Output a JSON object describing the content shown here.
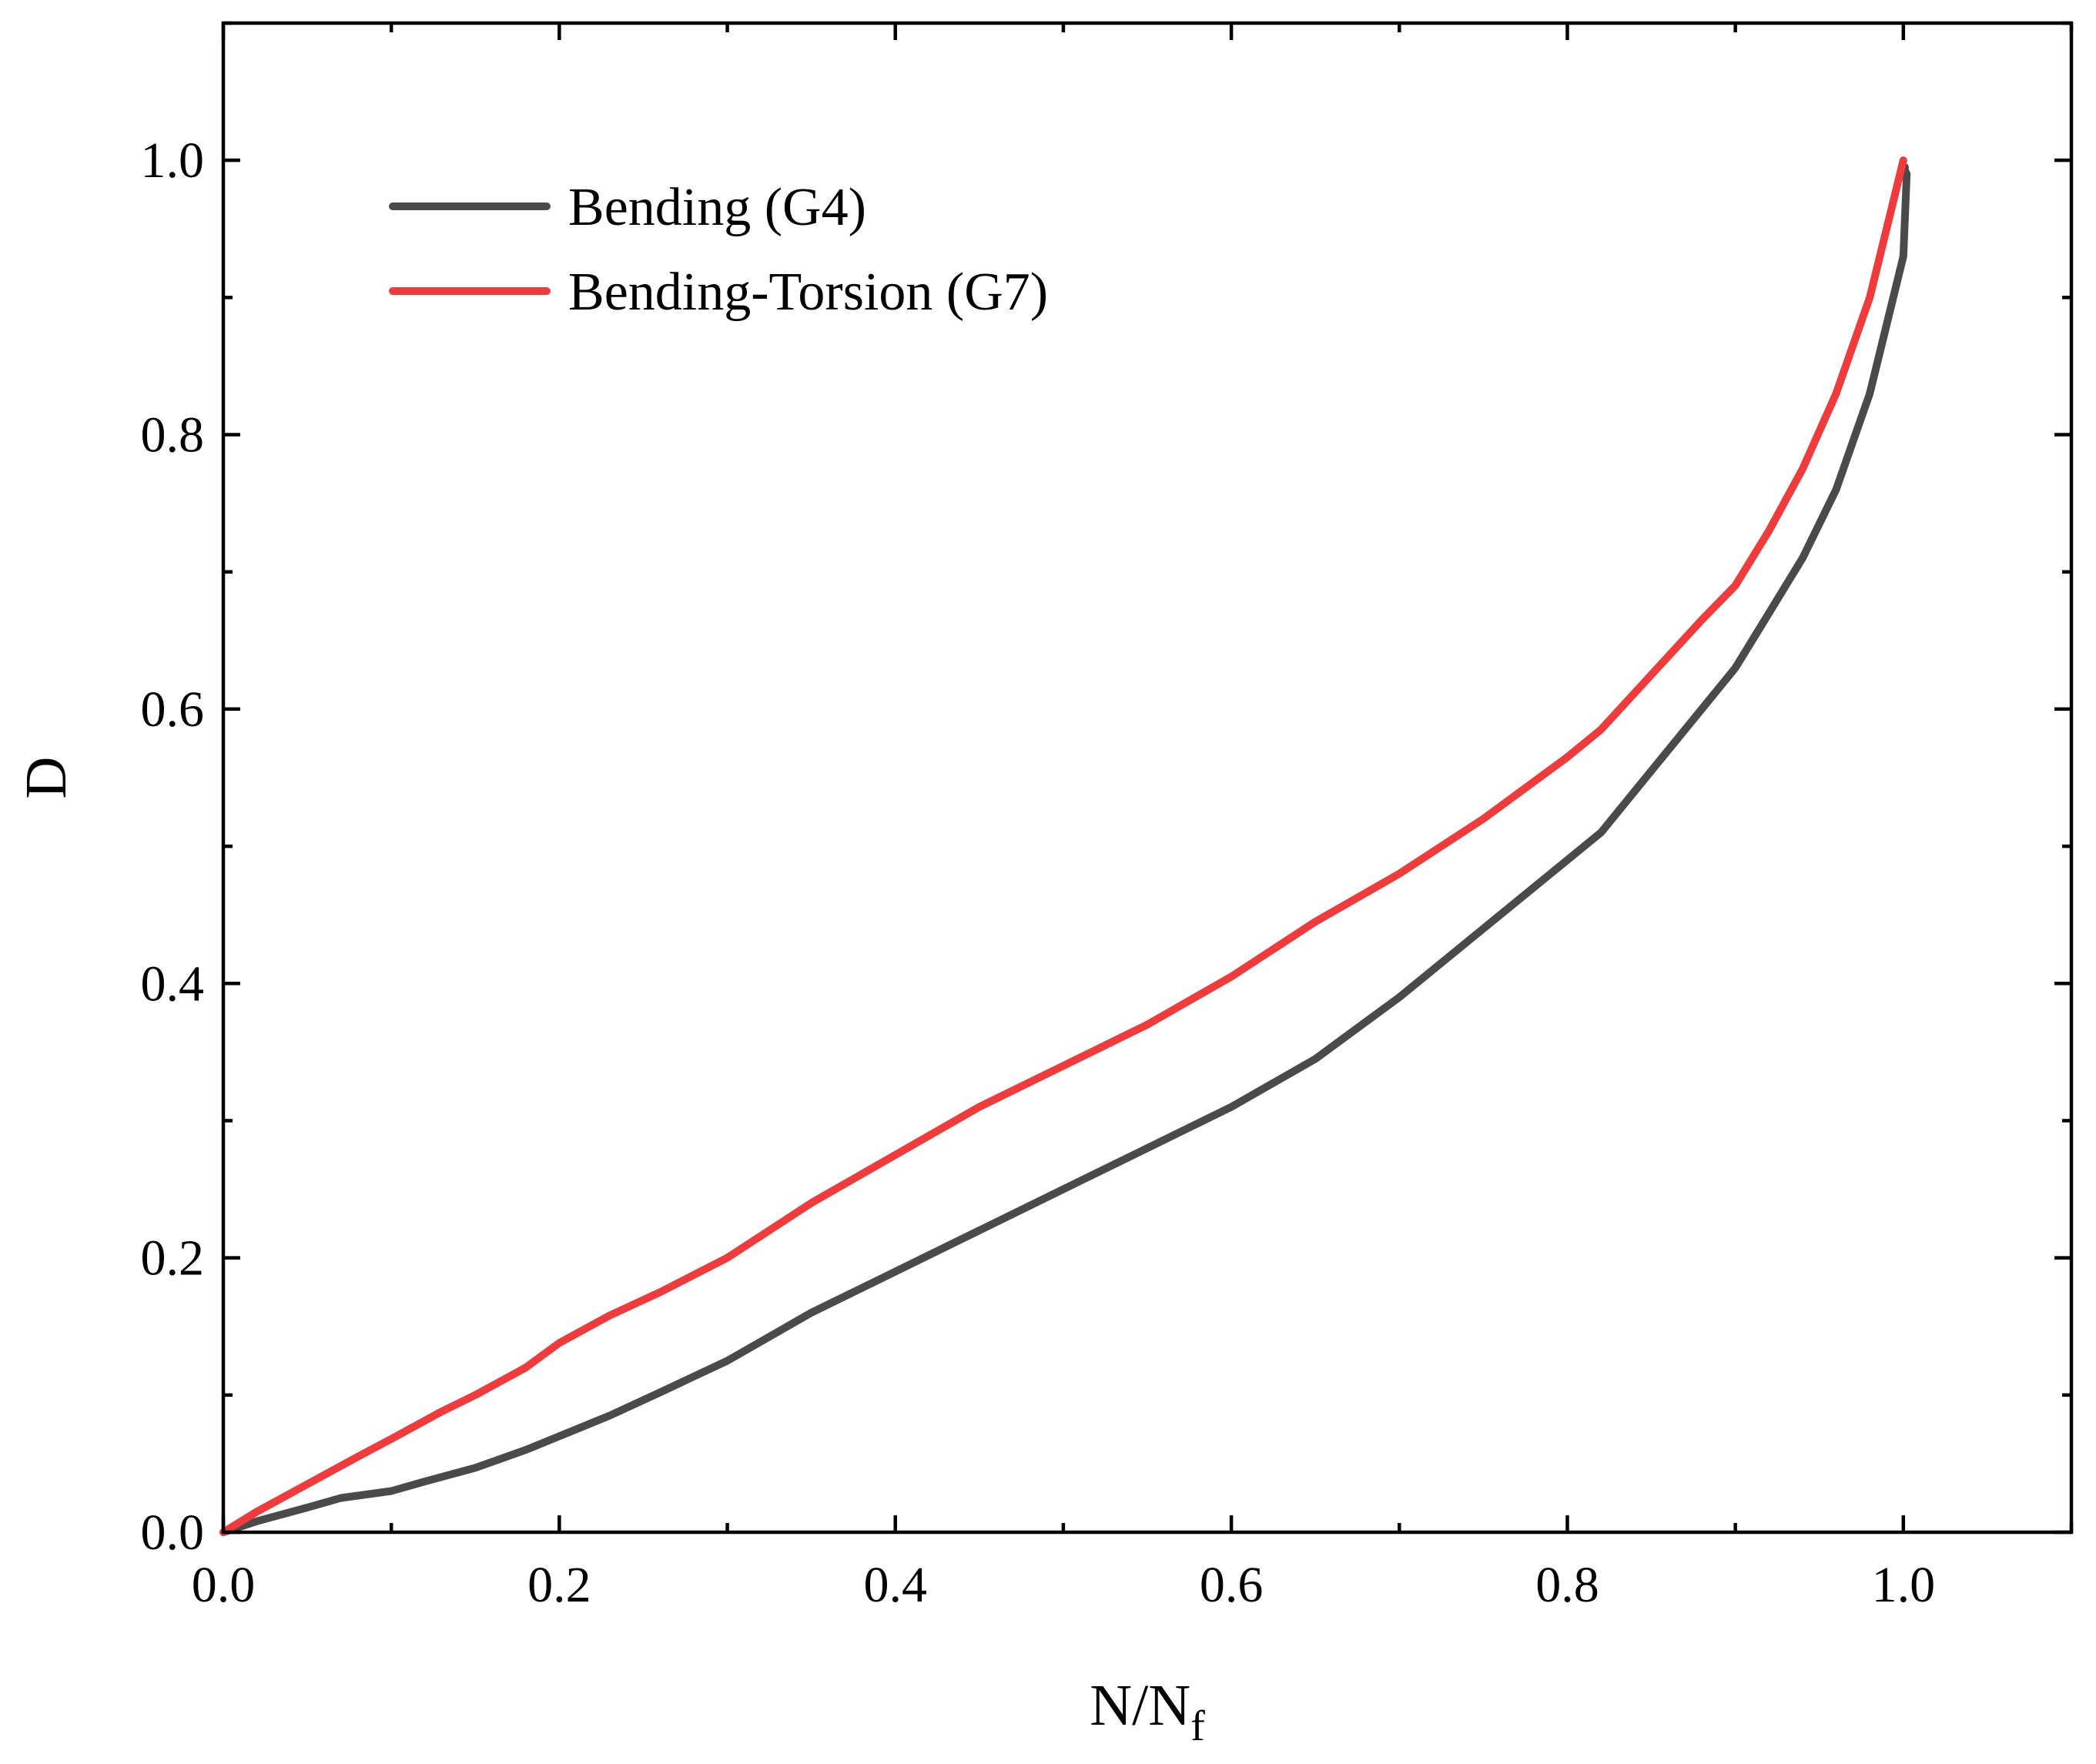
{
  "chart_data": {
    "type": "line",
    "xlabel": "N/N",
    "xlabel_sub": "f",
    "ylabel": "D",
    "xlim": [
      0.0,
      1.1
    ],
    "ylim": [
      0.0,
      1.1
    ],
    "xticks": [
      0.0,
      0.2,
      0.4,
      0.6,
      0.8,
      1.0
    ],
    "xtick_labels": [
      "0.0",
      "0.2",
      "0.4",
      "0.6",
      "0.8",
      "1.0"
    ],
    "yticks": [
      0.0,
      0.2,
      0.4,
      0.6,
      0.8,
      1.0
    ],
    "ytick_labels": [
      "0.0",
      "0.2",
      "0.4",
      "0.6",
      "0.8",
      "1.0"
    ],
    "grid": false,
    "legend_position": "top-left",
    "series": [
      {
        "name": "Bending (G4)",
        "color": "#4a4a4a",
        "x": [
          0.0,
          0.02,
          0.05,
          0.07,
          0.1,
          0.12,
          0.15,
          0.18,
          0.2,
          0.23,
          0.26,
          0.3,
          0.35,
          0.4,
          0.45,
          0.5,
          0.55,
          0.6,
          0.65,
          0.7,
          0.75,
          0.8,
          0.82,
          0.85,
          0.88,
          0.9,
          0.92,
          0.94,
          0.96,
          0.98,
          0.99,
          1.0,
          1.002,
          1.0,
          1.001
        ],
        "y": [
          0.0,
          0.008,
          0.018,
          0.025,
          0.03,
          0.037,
          0.047,
          0.06,
          0.07,
          0.085,
          0.102,
          0.125,
          0.16,
          0.19,
          0.22,
          0.25,
          0.28,
          0.31,
          0.345,
          0.39,
          0.44,
          0.49,
          0.51,
          0.555,
          0.6,
          0.63,
          0.67,
          0.71,
          0.76,
          0.83,
          0.88,
          0.93,
          0.99,
          0.995,
          0.995
        ]
      },
      {
        "name": "Bending-Torsion (G7)",
        "color": "#ef3b3b",
        "x": [
          0.0,
          0.02,
          0.05,
          0.08,
          0.1,
          0.13,
          0.15,
          0.18,
          0.2,
          0.23,
          0.26,
          0.3,
          0.35,
          0.4,
          0.45,
          0.5,
          0.55,
          0.6,
          0.65,
          0.7,
          0.75,
          0.8,
          0.82,
          0.85,
          0.88,
          0.9,
          0.92,
          0.94,
          0.96,
          0.98,
          0.99,
          1.0
        ],
        "y": [
          0.0,
          0.015,
          0.035,
          0.055,
          0.068,
          0.088,
          0.1,
          0.12,
          0.138,
          0.158,
          0.175,
          0.2,
          0.24,
          0.275,
          0.31,
          0.34,
          0.37,
          0.405,
          0.445,
          0.48,
          0.52,
          0.565,
          0.585,
          0.625,
          0.665,
          0.69,
          0.73,
          0.775,
          0.83,
          0.9,
          0.95,
          1.0
        ]
      }
    ]
  }
}
